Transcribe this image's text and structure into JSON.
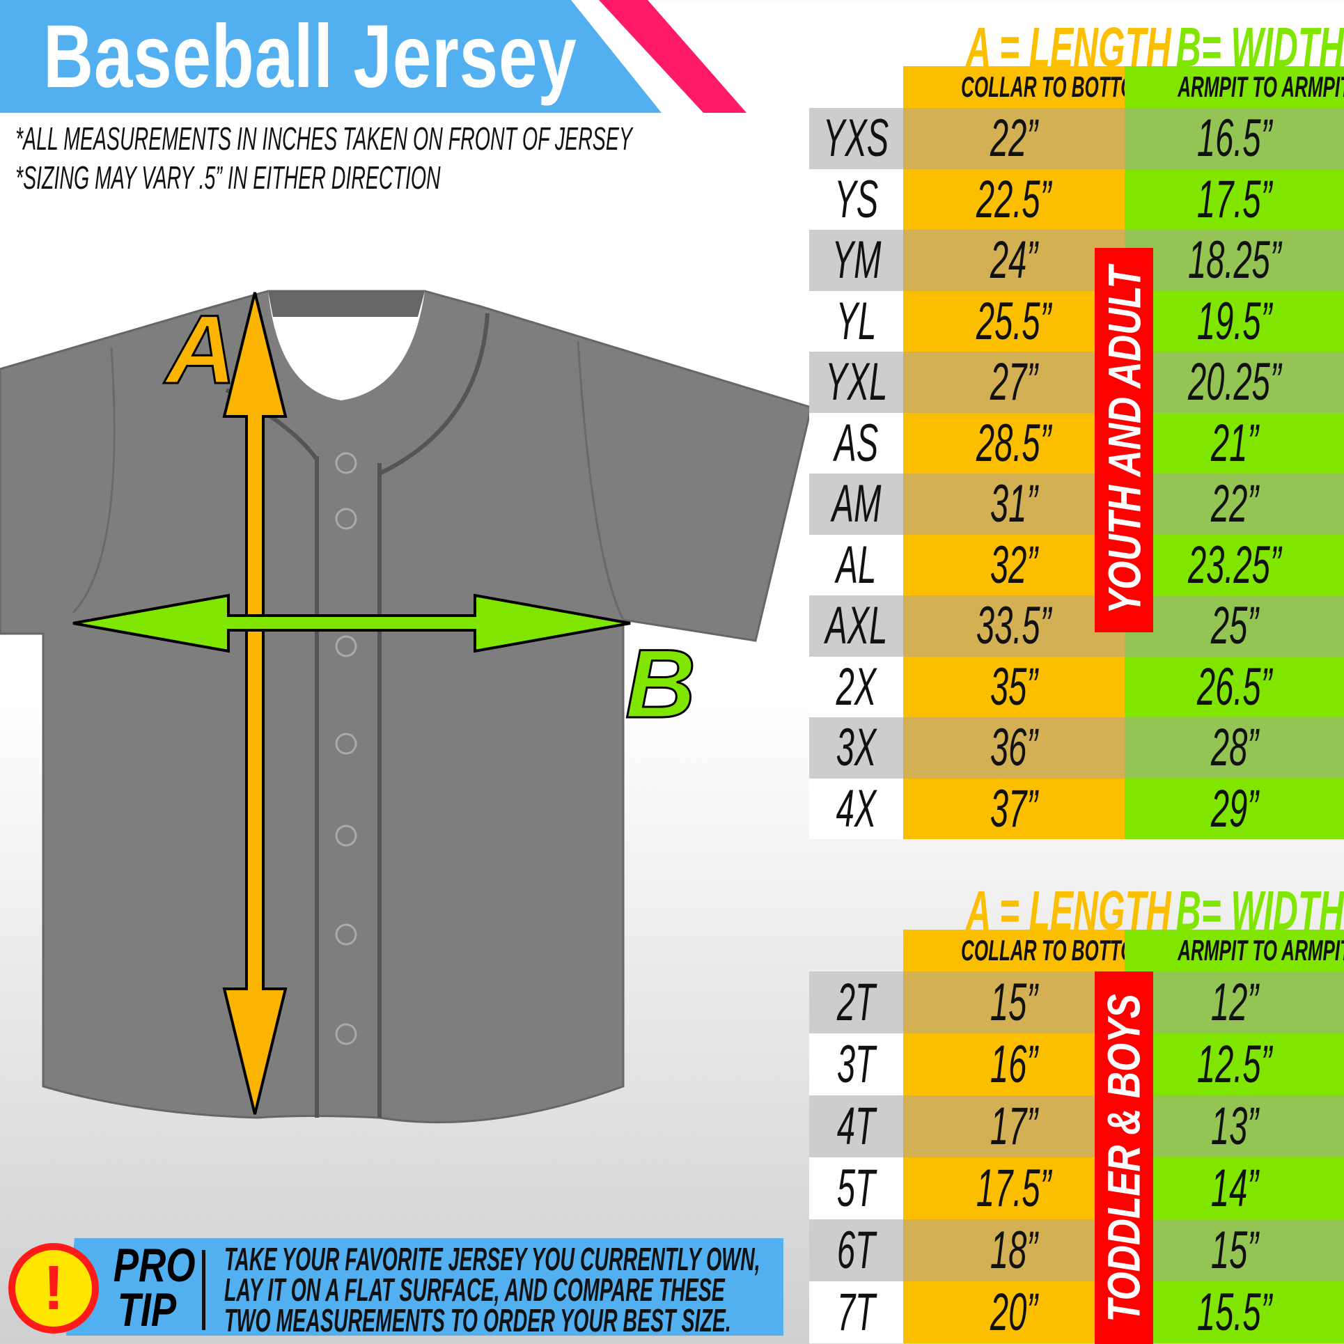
{
  "title": "Baseball Jersey",
  "notes": [
    "*ALL MEASUREMENTS IN INCHES TAKEN ON FRONT OF JERSEY",
    "*SIZING MAY VARY .5” IN EITHER DIRECTION"
  ],
  "diagram": {
    "label_a": "A",
    "label_b": "B"
  },
  "colors": {
    "banner": "#52b0f0",
    "stripe": "#ff1a66",
    "length": "#fbbf00",
    "width": "#80e600",
    "group_label": "#ff0000"
  },
  "tables": [
    {
      "group": "YOUTH AND ADULT",
      "length_header": "A = LENGTH",
      "width_header": "B= WIDTH",
      "length_sub": "COLLAR TO BOTTOM",
      "width_sub": "ARMPIT TO ARMPIT",
      "rows": [
        [
          "YXS",
          "22”",
          "16.5”"
        ],
        [
          "YS",
          "22.5”",
          "17.5”"
        ],
        [
          "YM",
          "24”",
          "18.25”"
        ],
        [
          "YL",
          "25.5”",
          "19.5”"
        ],
        [
          "YXL",
          "27”",
          "20.25”"
        ],
        [
          "AS",
          "28.5”",
          "21”"
        ],
        [
          "AM",
          "31”",
          "22”"
        ],
        [
          "AL",
          "32”",
          "23.25”"
        ],
        [
          "AXL",
          "33.5”",
          "25”"
        ],
        [
          "2X",
          "35”",
          "26.5”"
        ],
        [
          "3X",
          "36”",
          "28”"
        ],
        [
          "4X",
          "37”",
          "29”"
        ]
      ]
    },
    {
      "group": "TODDLER & BOYS",
      "length_header": "A = LENGTH",
      "width_header": "B= WIDTH",
      "length_sub": "COLLAR TO BOTTOM",
      "width_sub": "ARMPIT TO ARMPIT",
      "rows": [
        [
          "2T",
          "15”",
          "12”"
        ],
        [
          "3T",
          "16”",
          "12.5”"
        ],
        [
          "4T",
          "17”",
          "13”"
        ],
        [
          "5T",
          "17.5”",
          "14”"
        ],
        [
          "6T",
          "18”",
          "15”"
        ],
        [
          "7T",
          "20”",
          "15.5”"
        ]
      ]
    }
  ],
  "pro_tip": {
    "label_1": "PRO",
    "label_2": "TIP",
    "icon": "exclamation-icon",
    "lines": [
      "TAKE YOUR FAVORITE JERSEY YOU CURRENTLY OWN,",
      "LAY IT ON A FLAT SURFACE, AND COMPARE THESE",
      "TWO MEASUREMENTS TO ORDER YOUR BEST SIZE."
    ]
  }
}
